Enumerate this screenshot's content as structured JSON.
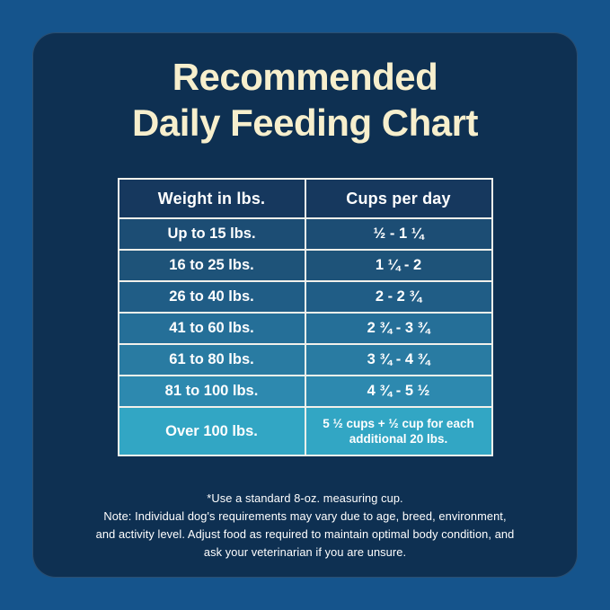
{
  "card": {
    "title_line1": "Recommended",
    "title_line2": "Daily Feeding Chart"
  },
  "chart_data": {
    "type": "table",
    "title": "Recommended Daily Feeding Chart",
    "columns": [
      "Weight in lbs.",
      "Cups per day"
    ],
    "rows": [
      {
        "weight": "Up to 15 lbs.",
        "cups": "½ - 1 ¼",
        "bg": "#1C4D74"
      },
      {
        "weight": "16 to 25 lbs.",
        "cups": "1 ¼ - 2",
        "bg": "#1E5379"
      },
      {
        "weight": "26 to 40 lbs.",
        "cups": "2 - 2 ¾",
        "bg": "#205D86"
      },
      {
        "weight": "41 to 60 lbs.",
        "cups": "2 ¾ - 3 ¾",
        "bg": "#256F98"
      },
      {
        "weight": "61 to 80 lbs.",
        "cups": "3 ¾ - 4 ¾",
        "bg": "#297BA2"
      },
      {
        "weight": "81 to 100 lbs.",
        "cups": "4 ¾ - 5 ½",
        "bg": "#2D89AF"
      },
      {
        "weight": "Over 100 lbs.",
        "cups": "5 ½ cups  + ½ cup for each additional 20 lbs.",
        "bg": "#32A6C4"
      }
    ]
  },
  "notes": {
    "lines": [
      "*Use a standard 8-oz. measuring cup.",
      "Note: Individual dog's requirements may vary due to age, breed, environment,",
      "and activity level. Adjust food as required to maintain optimal body condition, and",
      "ask your veterinarian if you are unsure."
    ]
  },
  "colors": {
    "outer_background": "#15548C",
    "panel_background": "#0E3052",
    "header_row_background": "#16385E",
    "title_text": "#F7EFCD",
    "table_border": "#F1F0EB",
    "body_text": "#FFFFFF"
  }
}
